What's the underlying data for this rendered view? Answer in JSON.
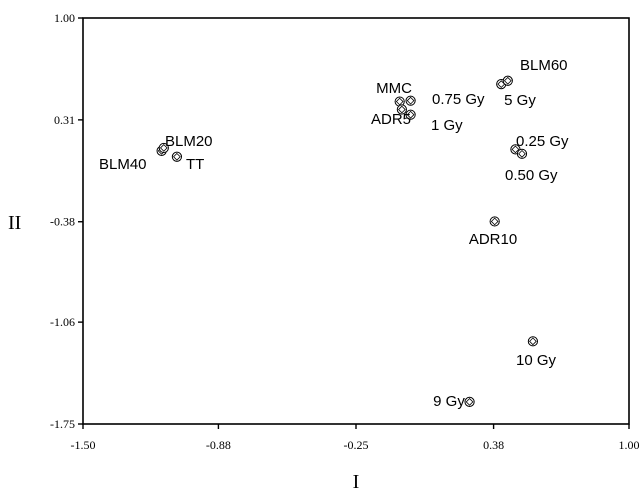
{
  "chart_data": {
    "type": "scatter",
    "xlabel": "I",
    "ylabel": "II",
    "xlim": [
      -1.5,
      1.0
    ],
    "ylim": [
      -1.75,
      1.0
    ],
    "x_ticks": [
      {
        "value": -1.5,
        "label": "-1.50"
      },
      {
        "value": -0.88,
        "label": "-0.88"
      },
      {
        "value": -0.25,
        "label": "-0.25"
      },
      {
        "value": 0.38,
        "label": "0.38"
      },
      {
        "value": 1.0,
        "label": "1.00"
      }
    ],
    "y_ticks": [
      {
        "value": 1.0,
        "label": "1.00"
      },
      {
        "value": 0.31,
        "label": "0.31"
      },
      {
        "value": -0.38,
        "label": "-0.38"
      },
      {
        "value": -1.06,
        "label": "-1.06"
      },
      {
        "value": -1.75,
        "label": "-1.75"
      }
    ],
    "grid": false,
    "marker": "diamond-circle",
    "points": [
      {
        "x": -1.14,
        "y": 0.1
      },
      {
        "x": -1.13,
        "y": 0.12
      },
      {
        "x": -1.07,
        "y": 0.06
      },
      {
        "x": -0.05,
        "y": 0.434
      },
      {
        "x": 0.0,
        "y": 0.44
      },
      {
        "x": -0.04,
        "y": 0.38
      },
      {
        "x": 0.0,
        "y": 0.345
      },
      {
        "x": 0.415,
        "y": 0.552
      },
      {
        "x": 0.445,
        "y": 0.575
      },
      {
        "x": 0.48,
        "y": 0.11
      },
      {
        "x": 0.51,
        "y": 0.08
      },
      {
        "x": 0.385,
        "y": -0.378
      },
      {
        "x": 0.56,
        "y": -1.19
      },
      {
        "x": 0.27,
        "y": -1.6
      }
    ],
    "annotations": [
      {
        "text": "BLM60"
      },
      {
        "text": "MMC"
      },
      {
        "text": "0.75 Gy"
      },
      {
        "text": "5 Gy"
      },
      {
        "text": "ADR5"
      },
      {
        "text": "1 Gy"
      },
      {
        "text": "BLM20"
      },
      {
        "text": "BLM40"
      },
      {
        "text": "TT"
      },
      {
        "text": "0.25 Gy"
      },
      {
        "text": "0.50 Gy"
      },
      {
        "text": "ADR10"
      },
      {
        "text": "10 Gy"
      },
      {
        "text": "9 Gy"
      }
    ]
  }
}
